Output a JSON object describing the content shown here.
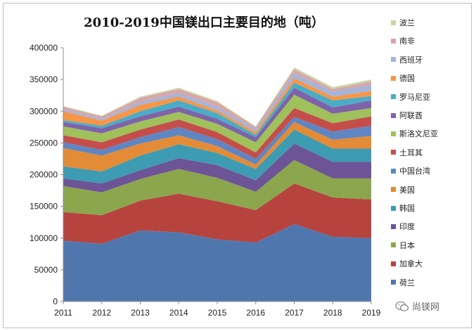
{
  "chart_data": {
    "type": "area",
    "stacked": true,
    "title": "2010-2019中国镁出口主要目的地（吨）",
    "xlabel": "",
    "ylabel": "",
    "x": [
      "2011",
      "2012",
      "2013",
      "2014",
      "2015",
      "2016",
      "2017",
      "2018",
      "2019"
    ],
    "ylim": [
      0,
      400000
    ],
    "yticks": [
      "0",
      "50000",
      "100000",
      "150000",
      "200000",
      "250000",
      "300000",
      "350000",
      "400000"
    ],
    "grid": false,
    "legend_position": "right",
    "series": [
      {
        "name": "荷兰",
        "color": "#4f77ae",
        "values": [
          96000,
          91000,
          112000,
          109000,
          98000,
          93000,
          122000,
          102000,
          100000
        ]
      },
      {
        "name": "加拿大",
        "color": "#b7433f",
        "values": [
          45000,
          45000,
          47000,
          61000,
          60000,
          51000,
          64000,
          62000,
          61000
        ]
      },
      {
        "name": "日本",
        "color": "#8ca64d",
        "values": [
          41000,
          36000,
          34000,
          39000,
          37000,
          29000,
          37000,
          30000,
          33000
        ]
      },
      {
        "name": "印度",
        "color": "#6d5496",
        "values": [
          12000,
          14000,
          14000,
          17000,
          20000,
          18000,
          26000,
          26000,
          26000
        ]
      },
      {
        "name": "韩国",
        "color": "#3d9bb2",
        "values": [
          19000,
          19000,
          23000,
          22000,
          19000,
          18000,
          22000,
          21000,
          21000
        ]
      },
      {
        "name": "美国",
        "color": "#e38b36",
        "values": [
          29000,
          25000,
          19000,
          14000,
          11000,
          7000,
          12000,
          14000,
          20000
        ]
      },
      {
        "name": "中国台湾",
        "color": "#5f86c3",
        "values": [
          9000,
          9000,
          10000,
          13000,
          11000,
          9000,
          8000,
          13000,
          16000
        ]
      },
      {
        "name": "土耳其",
        "color": "#c54e4b",
        "values": [
          11000,
          12000,
          12000,
          12000,
          11000,
          10000,
          14000,
          13000,
          15000
        ]
      },
      {
        "name": "斯洛文尼亚",
        "color": "#9fc05a",
        "values": [
          14000,
          14000,
          13000,
          12000,
          13000,
          16000,
          21000,
          15000,
          13000
        ]
      },
      {
        "name": "阿联酋",
        "color": "#7e63a8",
        "values": [
          7000,
          8000,
          8000,
          8000,
          8000,
          8000,
          11000,
          10000,
          12000
        ]
      },
      {
        "name": "罗马尼亚",
        "color": "#4bacc6",
        "values": [
          3000,
          4000,
          8000,
          10000,
          9000,
          4000,
          8000,
          11000,
          7000
        ]
      },
      {
        "name": "德国",
        "color": "#f79646",
        "values": [
          14000,
          8000,
          10000,
          6000,
          4000,
          4000,
          7000,
          6000,
          8000
        ]
      },
      {
        "name": "西班牙",
        "color": "#a6b4d8",
        "values": [
          3000,
          3000,
          5000,
          6000,
          6000,
          4000,
          8000,
          8000,
          10000
        ]
      },
      {
        "name": "南非",
        "color": "#d8a6aa",
        "values": [
          4000,
          4000,
          6000,
          6000,
          7000,
          4000,
          6000,
          4000,
          5000
        ]
      },
      {
        "name": "波兰",
        "color": "#c9d6a4",
        "values": [
          1000,
          1000,
          2000,
          2000,
          2000,
          1000,
          3000,
          3000,
          3000
        ]
      }
    ]
  },
  "watermark": {
    "text": "尚镁网",
    "icon": "wechat-icon"
  }
}
